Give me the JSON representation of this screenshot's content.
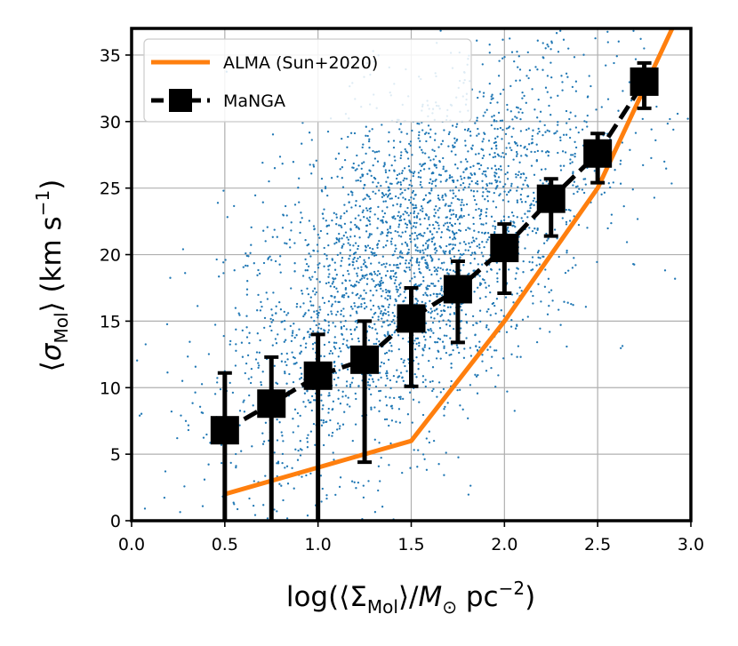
{
  "chart_data": {
    "type": "scatter",
    "xlabel": "log(⟨Σ_Mol⟩/M_⊙ pc^−2)",
    "ylabel": "⟨σ_Mol⟩ (km s^−1)",
    "xlim": [
      0.0,
      3.0
    ],
    "ylim": [
      0,
      37
    ],
    "xticks": [
      0.0,
      0.5,
      1.0,
      1.5,
      2.0,
      2.5,
      3.0
    ],
    "xtick_labels": [
      "0.0",
      "0.5",
      "1.0",
      "1.5",
      "2.0",
      "2.5",
      "3.0"
    ],
    "yticks": [
      0,
      5,
      10,
      15,
      20,
      25,
      30,
      35
    ],
    "ytick_labels": [
      "0",
      "5",
      "10",
      "15",
      "20",
      "25",
      "30",
      "35"
    ],
    "grid": true,
    "legend_position": "top-left",
    "series": [
      {
        "name": "ALMA (Sun+2020)",
        "kind": "line",
        "color": "#ff7f0e",
        "x": [
          0.5,
          1.0,
          1.5,
          2.0,
          2.5,
          2.9
        ],
        "y": [
          2,
          4,
          6,
          15,
          25,
          37
        ]
      },
      {
        "name": "MaNGA",
        "kind": "errorbar",
        "color": "#000000",
        "x": [
          0.5,
          0.75,
          1.0,
          1.25,
          1.5,
          1.75,
          2.0,
          2.25,
          2.5,
          2.75
        ],
        "y": [
          6.8,
          8.8,
          10.9,
          12.1,
          15.2,
          17.4,
          20.5,
          24.2,
          27.6,
          33.0
        ],
        "yerr_low": [
          6.8,
          8.8,
          10.9,
          7.7,
          5.1,
          4.0,
          3.4,
          2.8,
          2.2,
          2.0
        ],
        "yerr_high": [
          4.3,
          3.5,
          3.1,
          2.9,
          2.3,
          2.1,
          1.8,
          1.5,
          1.5,
          1.4
        ]
      },
      {
        "kind": "scatter-cloud",
        "color": "#1f77b4",
        "count": 3000,
        "description_note": "dense cloud of small points; see shape parameters",
        "x_center": 1.5,
        "x_spread": 0.5,
        "y_intercept": 6,
        "y_slope": 9,
        "y_spread": 6.5
      }
    ],
    "legend": [
      {
        "label": "ALMA (Sun+2020)",
        "marker": "line",
        "color": "#ff7f0e"
      },
      {
        "label": "MaNGA",
        "marker": "square-dashed",
        "color": "#000000"
      }
    ]
  }
}
